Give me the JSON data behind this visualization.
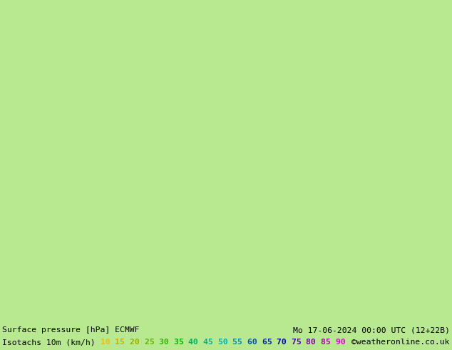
{
  "background_color": "#b8e890",
  "bottom_bar_bg": "#ffffff",
  "line1_text_left": "Surface pressure [hPa] ECMWF",
  "line1_text_right": "Mo 17-06-2024 00:00 UTC (12+22B)",
  "line2_label": "Isotachs 10m (km/h)",
  "line2_values": [
    "10",
    "15",
    "20",
    "25",
    "30",
    "35",
    "40",
    "45",
    "50",
    "55",
    "60",
    "65",
    "70",
    "75",
    "80",
    "85",
    "90"
  ],
  "line2_colors": [
    "#f0c000",
    "#c8b400",
    "#96b400",
    "#64b400",
    "#32b400",
    "#00b400",
    "#00b464",
    "#00b4a0",
    "#00b4b4",
    "#0090b4",
    "#0050b4",
    "#0028b4",
    "#0000b4",
    "#5000b4",
    "#8000b4",
    "#b400b4",
    "#e000e0"
  ],
  "line2_copyright": "©weatheronline.co.uk",
  "fig_width": 6.34,
  "fig_height": 4.9,
  "dpi": 100
}
